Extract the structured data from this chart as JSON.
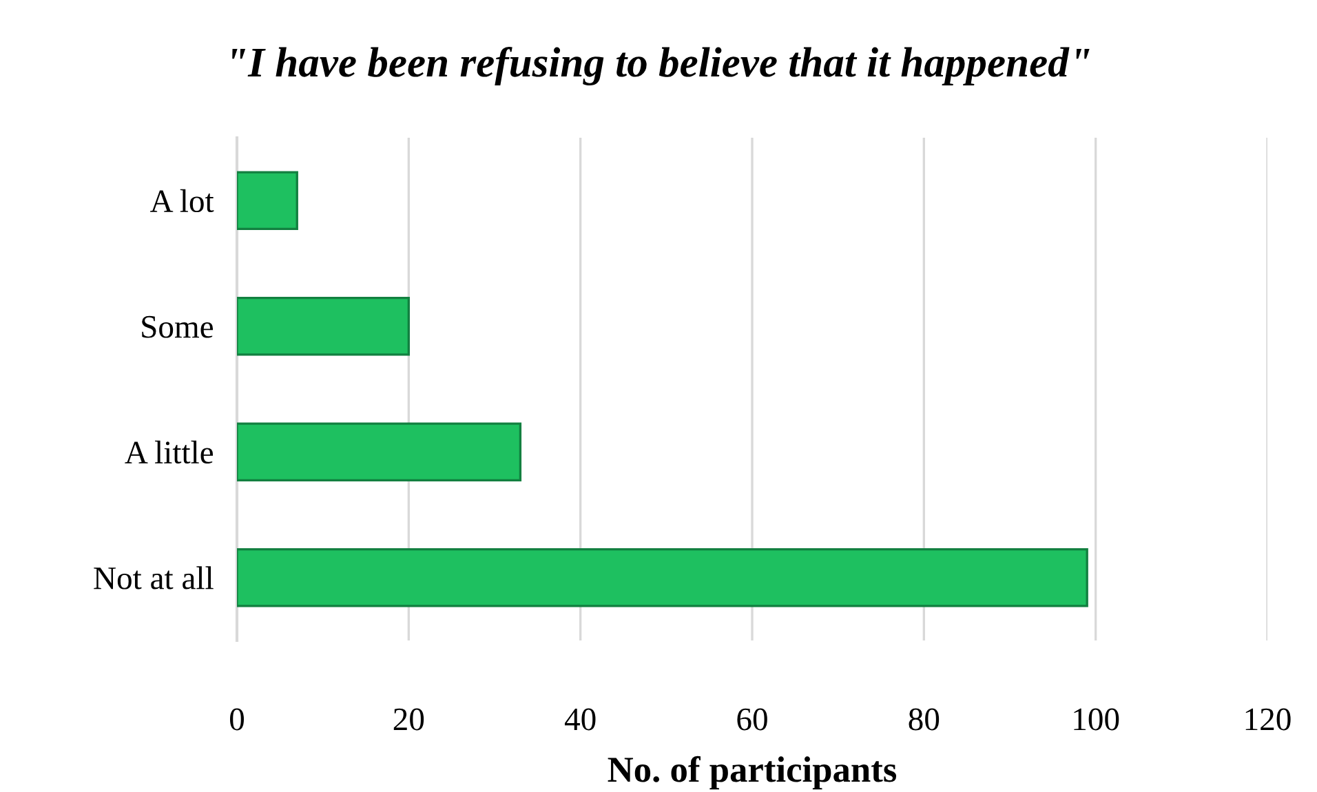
{
  "chart_data": {
    "type": "bar",
    "orientation": "horizontal",
    "title": "\"I have been refusing to believe that it happened\"",
    "xlabel": "No. of participants",
    "categories": [
      "A lot",
      "Some",
      "A little",
      "Not at all"
    ],
    "values": [
      7,
      20,
      33,
      99
    ],
    "color": "#1ec060",
    "xlim": [
      0,
      120
    ],
    "xticks": [
      0,
      20,
      40,
      60,
      80,
      100,
      120
    ],
    "grid": "x"
  }
}
